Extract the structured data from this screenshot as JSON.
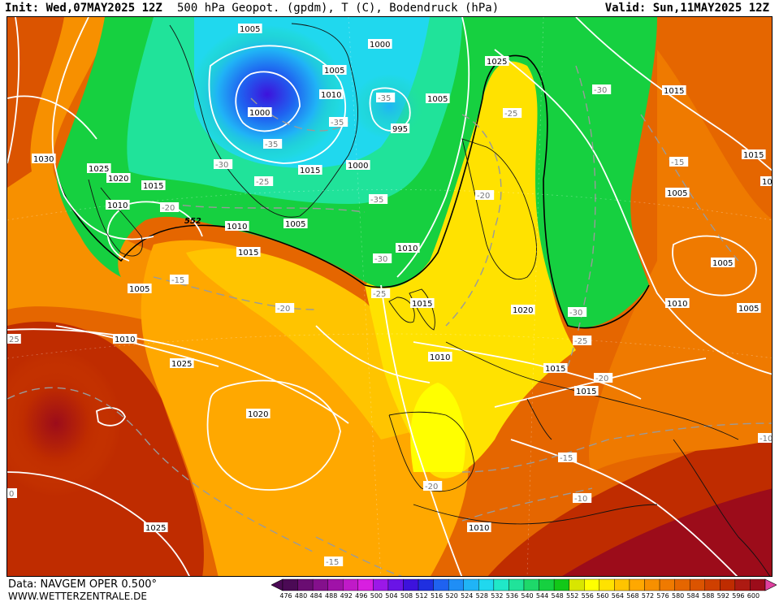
{
  "header": {
    "init": "Init: Wed,07MAY2025 12Z",
    "title": "500 hPa Geopot. (gpdm), T (C), Bodendruck (hPa)",
    "valid": "Valid: Sun,11MAY2025 12Z"
  },
  "footer": {
    "data_source": "Data: NAVGEM OPER 0.500°",
    "website": "WWW.WETTERZENTRALE.DE"
  },
  "legend": {
    "values": [
      "476",
      "480",
      "484",
      "488",
      "492",
      "496",
      "500",
      "504",
      "508",
      "512",
      "516",
      "520",
      "524",
      "528",
      "532",
      "536",
      "540",
      "544",
      "548",
      "552",
      "556",
      "560",
      "564",
      "568",
      "572",
      "576",
      "580",
      "584",
      "588",
      "592",
      "596",
      "600"
    ],
    "colors": [
      "#4b0a55",
      "#6a0d72",
      "#84108c",
      "#a012a8",
      "#c01ac8",
      "#d81fe0",
      "#9c18e8",
      "#6a14e6",
      "#3d12dc",
      "#1f2fe0",
      "#1f62f0",
      "#1f8ef6",
      "#20b4f6",
      "#20d8ee",
      "#20e8c8",
      "#20e39a",
      "#1ed86a",
      "#16d040",
      "#12c818",
      "#d8e600",
      "#ffff00",
      "#ffe200",
      "#ffc400",
      "#ffa800",
      "#f79000",
      "#ef7a00",
      "#e56600",
      "#db5400",
      "#cf4000",
      "#bf2c00",
      "#ad1a12",
      "#9c0c1a"
    ]
  },
  "map": {
    "contour_552_label": "552",
    "isobar_labels": [
      {
        "text": "1005"
      },
      {
        "text": "1000"
      },
      {
        "text": "1005"
      },
      {
        "text": "1000"
      },
      {
        "text": "1010"
      },
      {
        "text": "1005"
      },
      {
        "text": "995"
      },
      {
        "text": "1030"
      },
      {
        "text": "1025"
      },
      {
        "text": "1020"
      },
      {
        "text": "1015"
      },
      {
        "text": "1015"
      },
      {
        "text": "1000"
      },
      {
        "text": "1010"
      },
      {
        "text": "1010"
      },
      {
        "text": "1005"
      },
      {
        "text": "1015"
      },
      {
        "text": "1005"
      },
      {
        "text": "1010"
      },
      {
        "text": "1025"
      },
      {
        "text": "1015"
      },
      {
        "text": "1020"
      },
      {
        "text": "1025"
      },
      {
        "text": "1020"
      },
      {
        "text": "1010"
      },
      {
        "text": "1015"
      },
      {
        "text": "1015"
      },
      {
        "text": "1010"
      },
      {
        "text": "1025"
      },
      {
        "text": "1010"
      },
      {
        "text": "1015"
      },
      {
        "text": "1015"
      },
      {
        "text": "1005"
      },
      {
        "text": "1005"
      },
      {
        "text": "1010"
      },
      {
        "text": "1005"
      },
      {
        "text": "10"
      }
    ],
    "temp_labels": [
      {
        "text": "-35"
      },
      {
        "text": "-35"
      },
      {
        "text": "-35"
      },
      {
        "text": "-30"
      },
      {
        "text": "-25"
      },
      {
        "text": "-20"
      },
      {
        "text": "-35"
      },
      {
        "text": "-15"
      },
      {
        "text": "-30"
      },
      {
        "text": "-25"
      },
      {
        "text": "-20"
      },
      {
        "text": "-25"
      },
      {
        "text": "-20"
      },
      {
        "text": "-30"
      },
      {
        "text": "-15"
      },
      {
        "text": "-30"
      },
      {
        "text": "-25"
      },
      {
        "text": "-20"
      },
      {
        "text": "-15"
      },
      {
        "text": "-10"
      },
      {
        "text": "-10"
      },
      {
        "text": "-20"
      },
      {
        "text": "-15"
      },
      {
        "text": "25"
      },
      {
        "text": "0"
      }
    ]
  }
}
